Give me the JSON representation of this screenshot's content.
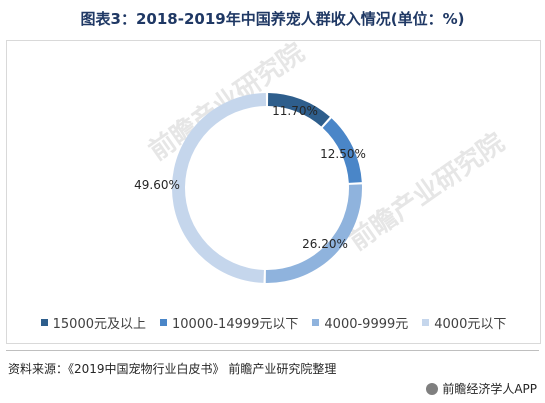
{
  "title": "图表3：2018-2019年中国养宠人群收入情况(单位：%)",
  "source": "资料来源：《2019中国宠物行业白皮书》 前瞻产业研究院整理",
  "brand": "前瞻经济学人APP",
  "watermark": "前瞻产业研究院",
  "chart_data": {
    "type": "pie",
    "style": "donut",
    "title": "图表3：2018-2019年中国养宠人群收入情况(单位：%)",
    "unit": "%",
    "legend_position": "bottom",
    "categories": [
      "15000元及以上",
      "10000-14999元以下",
      "4000-9999元",
      "4000元以下"
    ],
    "values": [
      11.7,
      12.5,
      26.2,
      49.6
    ],
    "labels": [
      "11.70%",
      "12.50%",
      "26.20%",
      "49.60%"
    ],
    "colors": [
      "#2e5e8c",
      "#4a86c8",
      "#8fb3dd",
      "#c5d6ec"
    ]
  }
}
